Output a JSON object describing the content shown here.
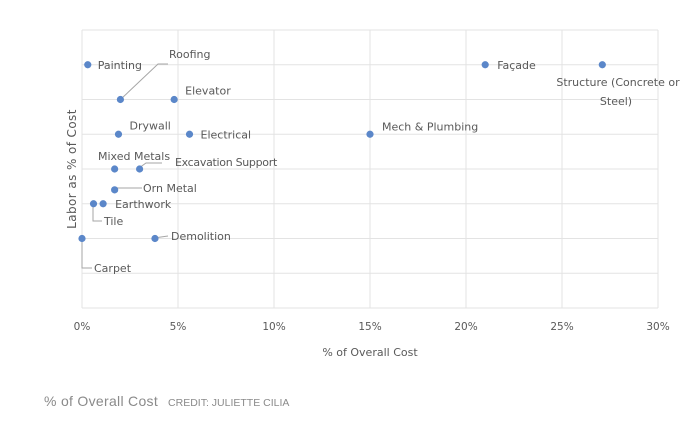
{
  "chart_data": {
    "type": "scatter",
    "title": "",
    "xlabel": "% of Overall Cost",
    "ylabel": "Labor  as % of Cost",
    "xlim": [
      0,
      30
    ],
    "ylim": [
      0,
      8
    ],
    "x_ticks": [
      "0%",
      "5%",
      "10%",
      "15%",
      "20%",
      "25%",
      "30%"
    ],
    "y_ticks_labeled": false,
    "grid": true,
    "color": "#5b87c9",
    "points": [
      {
        "name": "Painting",
        "x": 0.3,
        "y": 7
      },
      {
        "name": "Roofing",
        "x": 2.0,
        "y": 6
      },
      {
        "name": "Elevator",
        "x": 4.8,
        "y": 6
      },
      {
        "name": "Drywall",
        "x": 1.9,
        "y": 5
      },
      {
        "name": "Electrical",
        "x": 5.6,
        "y": 5
      },
      {
        "name": "Mech & Plumbing",
        "x": 15.0,
        "y": 5
      },
      {
        "name": "Façade",
        "x": 21.0,
        "y": 7
      },
      {
        "name": "Structure (Concrete or Steel)",
        "x": 27.1,
        "y": 7
      },
      {
        "name": "Mixed Metals",
        "x": 1.7,
        "y": 4
      },
      {
        "name": "Excavation Support",
        "x": 3.0,
        "y": 4
      },
      {
        "name": "Orn Metal",
        "x": 1.7,
        "y": 3.4
      },
      {
        "name": "Tile",
        "x": 0.6,
        "y": 3
      },
      {
        "name": "Earthwork",
        "x": 1.1,
        "y": 3
      },
      {
        "name": "Carpet",
        "x": 0.0,
        "y": 2
      },
      {
        "name": "Demolition",
        "x": 3.8,
        "y": 2
      }
    ]
  },
  "caption": {
    "text": "% of Overall Cost",
    "credit": "CREDIT: JULIETTE CILIA"
  }
}
